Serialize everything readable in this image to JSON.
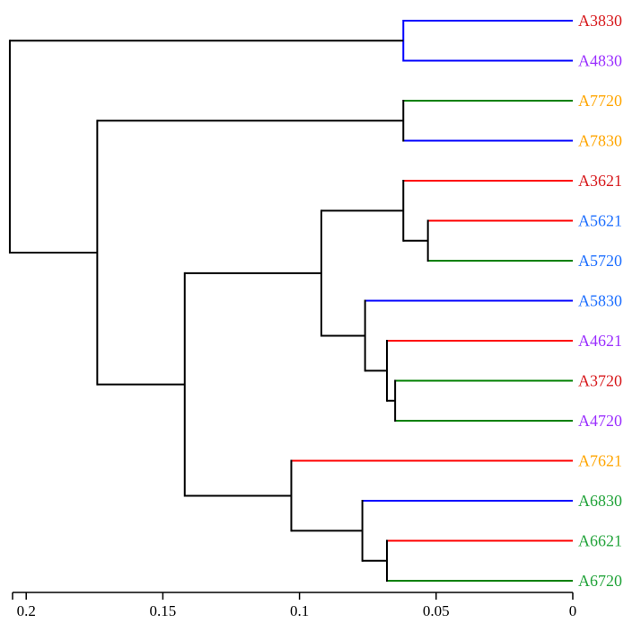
{
  "chart_data": {
    "type": "dendrogram",
    "title": "",
    "xlabel": "",
    "xlim": [
      0.205,
      0
    ],
    "ticks": [
      {
        "value": 0.2,
        "label": "0.2"
      },
      {
        "value": 0.15,
        "label": "0.15"
      },
      {
        "value": 0.1,
        "label": "0.1"
      },
      {
        "value": 0.05,
        "label": "0.05"
      },
      {
        "value": 0,
        "label": "0"
      }
    ],
    "leaves": [
      {
        "label": "A3830",
        "color": "#d7191c"
      },
      {
        "label": "A4830",
        "color": "#9b30ff"
      },
      {
        "label": "A7720",
        "color": "#ffa500"
      },
      {
        "label": "A7830",
        "color": "#ffa500"
      },
      {
        "label": "A3621",
        "color": "#d7191c"
      },
      {
        "label": "A5621",
        "color": "#1e6fff"
      },
      {
        "label": "A5720",
        "color": "#1e6fff"
      },
      {
        "label": "A5830",
        "color": "#1e6fff"
      },
      {
        "label": "A4621",
        "color": "#9b30ff"
      },
      {
        "label": "A3720",
        "color": "#d7191c"
      },
      {
        "label": "A4720",
        "color": "#9b30ff"
      },
      {
        "label": "A7621",
        "color": "#ffa500"
      },
      {
        "label": "A6830",
        "color": "#22a33a"
      },
      {
        "label": "A6621",
        "color": "#22a33a"
      },
      {
        "label": "A6720",
        "color": "#22a33a"
      }
    ],
    "leaf_branch_colors": [
      "#ff0000",
      "#0000ff",
      "#008000",
      "#0000ff",
      "#ff0000",
      "#ff0000",
      "#008000",
      "#0000ff",
      "#ff0000",
      "#008000",
      "#008000",
      "#ff0000",
      "#0000ff",
      "#ff0000",
      "#008000"
    ],
    "merges": [
      {
        "id": "m1",
        "children": [
          "L0",
          "L1"
        ],
        "height": 0.062,
        "color": "#0000ff"
      },
      {
        "id": "m2",
        "children": [
          "L2",
          "L3"
        ],
        "height": 0.062,
        "color": "#000000"
      },
      {
        "id": "m3",
        "children": [
          "L5",
          "L6"
        ],
        "height": 0.053,
        "color": "#000000"
      },
      {
        "id": "m4",
        "children": [
          "L4",
          "m3"
        ],
        "height": 0.062,
        "color": "#000000"
      },
      {
        "id": "m5",
        "children": [
          "L9",
          "L10"
        ],
        "height": 0.065,
        "color": "#000000"
      },
      {
        "id": "m6",
        "children": [
          "L8",
          "m5"
        ],
        "height": 0.068,
        "color": "#000000"
      },
      {
        "id": "m7",
        "children": [
          "L7",
          "m6"
        ],
        "height": 0.076,
        "color": "#000000"
      },
      {
        "id": "m8",
        "children": [
          "m4",
          "m7"
        ],
        "height": 0.092,
        "color": "#000000"
      },
      {
        "id": "m9",
        "children": [
          "L13",
          "L14"
        ],
        "height": 0.068,
        "color": "#000000"
      },
      {
        "id": "m10",
        "children": [
          "L12",
          "m9"
        ],
        "height": 0.077,
        "color": "#000000"
      },
      {
        "id": "m11",
        "children": [
          "L11",
          "m10"
        ],
        "height": 0.103,
        "color": "#000000"
      },
      {
        "id": "m12",
        "children": [
          "m8",
          "m11"
        ],
        "height": 0.142,
        "color": "#000000"
      },
      {
        "id": "m13",
        "children": [
          "m2",
          "m12"
        ],
        "height": 0.174,
        "color": "#000000"
      },
      {
        "id": "m14",
        "children": [
          "m1",
          "m13"
        ],
        "height": 0.206,
        "color": "#000000"
      }
    ]
  }
}
